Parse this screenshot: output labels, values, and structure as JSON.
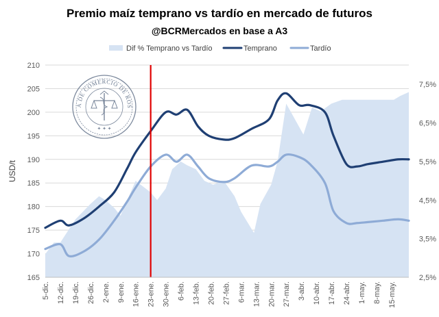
{
  "chart_data": {
    "type": "line",
    "title": "Premio maíz temprano vs tardío en mercado de futuros",
    "subtitle": "@BCRMercados en base a A3",
    "ylabel": "USD/t",
    "ylim": [
      165,
      210
    ],
    "y_ticks": [
      "165",
      "170",
      "175",
      "180",
      "185",
      "190",
      "195",
      "200",
      "205",
      "210"
    ],
    "y2lim": [
      2.5,
      8.0
    ],
    "y2_ticks": [
      "2,5%",
      "3,5%",
      "4,5%",
      "5,5%",
      "6,5%",
      "7,5%"
    ],
    "y2_tick_values": [
      2.5,
      3.5,
      4.5,
      5.5,
      6.5,
      7.5
    ],
    "x_tick_labels": [
      "5-dic.",
      "12-dic.",
      "19-dic.",
      "26-dic.",
      "2-ene.",
      "9-ene.",
      "16-ene.",
      "23-ene.",
      "30-ene.",
      "6-feb.",
      "13-feb.",
      "20-feb.",
      "27-feb.",
      "6-mar.",
      "13-mar.",
      "20-mar.",
      "27-mar.",
      "3-abr.",
      "10-abr.",
      "17-abr.",
      "24-abr.",
      "1-may.",
      "8-may.",
      "15-may."
    ],
    "x_range_days": [
      0,
      169
    ],
    "marker_day": 49,
    "legend": [
      "Dif % Temprano vs Tardío",
      "Temprano",
      "Tardío"
    ],
    "colors": {
      "diff": "#d6e3f3",
      "temprano": "#1f3f73",
      "tardio": "#8eabd6",
      "marker": "#e00000"
    },
    "series": [
      {
        "name": "Temprano",
        "axis": "left",
        "x": [
          0,
          7,
          11,
          18,
          25,
          32,
          38,
          42,
          49,
          56,
          61,
          66,
          71,
          76,
          83,
          88,
          96,
          104,
          108,
          112,
          118,
          123,
          130,
          134,
          140,
          145,
          150,
          157,
          164,
          169
        ],
        "values": [
          175.5,
          177.0,
          176.0,
          177.5,
          180.0,
          183.0,
          188.0,
          191.5,
          196.0,
          200.0,
          199.5,
          200.5,
          197.0,
          195.0,
          194.2,
          194.5,
          196.5,
          198.5,
          202.5,
          204.0,
          201.5,
          201.5,
          200.0,
          195.0,
          189.0,
          188.5,
          189.0,
          189.5,
          190.0,
          190.0
        ]
      },
      {
        "name": "Tardío",
        "axis": "left",
        "x": [
          0,
          7,
          11,
          18,
          25,
          32,
          38,
          42,
          49,
          56,
          61,
          66,
          71,
          76,
          83,
          88,
          96,
          104,
          108,
          112,
          118,
          123,
          130,
          134,
          140,
          145,
          150,
          157,
          164,
          169
        ],
        "values": [
          171.0,
          172.0,
          169.5,
          170.5,
          173.0,
          177.0,
          181.0,
          184.0,
          188.5,
          191.0,
          189.5,
          191.0,
          188.5,
          186.0,
          185.2,
          186.0,
          188.7,
          188.5,
          189.5,
          191.0,
          190.5,
          189.0,
          185.0,
          179.0,
          176.5,
          176.5,
          176.7,
          177.0,
          177.3,
          177.0
        ]
      },
      {
        "name": "Dif % Temprano vs Tardío",
        "axis": "right",
        "type": "area",
        "x": [
          0,
          4,
          7,
          14,
          21,
          25,
          28,
          32,
          35,
          42,
          49,
          52,
          56,
          59,
          63,
          66,
          70,
          74,
          78,
          83,
          88,
          91,
          97,
          100,
          105,
          108,
          112,
          115,
          120,
          124,
          128,
          133,
          138,
          143,
          148,
          154,
          158,
          162,
          165,
          169
        ],
        "values": [
          3.1,
          3.4,
          3.4,
          4.0,
          4.4,
          4.6,
          4.5,
          4.3,
          4.1,
          5.0,
          4.7,
          4.5,
          4.8,
          5.3,
          5.5,
          5.4,
          5.3,
          5.0,
          4.9,
          5.0,
          4.6,
          4.2,
          3.65,
          4.4,
          4.9,
          5.5,
          7.0,
          6.7,
          6.2,
          6.9,
          6.8,
          7.0,
          7.1,
          7.1,
          7.1,
          7.1,
          7.1,
          7.1,
          7.2,
          7.3
        ]
      }
    ]
  }
}
